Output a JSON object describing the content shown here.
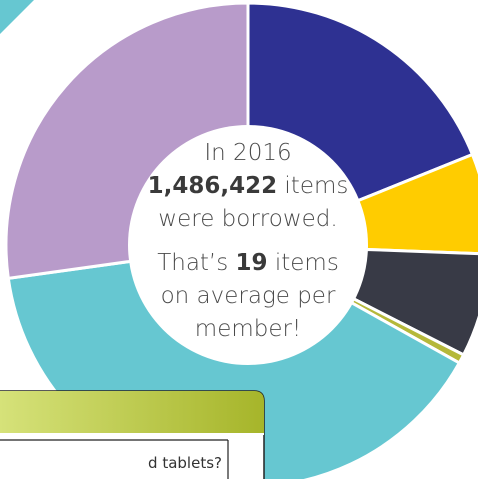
{
  "chart_data": {
    "type": "donut",
    "values": [
      18.9,
      6.7,
      6.9,
      0.6,
      39.7,
      27.2
    ],
    "colors": [
      "#2e3192",
      "#ffcc00",
      "#383a46",
      "#b5b83a",
      "#66c7d1",
      "#b89bca"
    ]
  },
  "center_text": {
    "line1": "In 2016",
    "total": "1,486,422",
    "total_rest": " items",
    "line3": "were borrowed.",
    "avg_pre": "That’s ",
    "avg": "19",
    "avg_rest": " items",
    "line5": "on average per",
    "line6": "member!"
  },
  "panel": {
    "text": "d tablets?"
  }
}
